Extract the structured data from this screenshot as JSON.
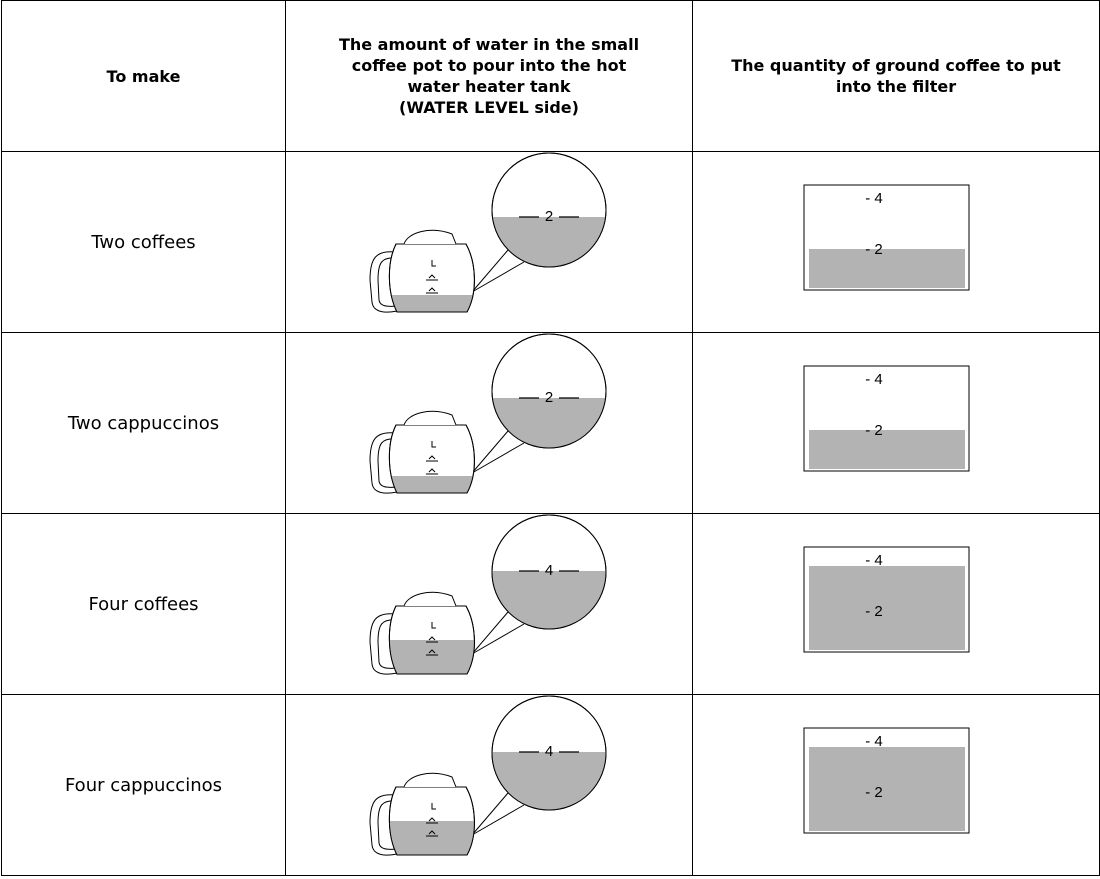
{
  "header": {
    "to_make": "To make",
    "water": [
      "The amount of water in the small",
      "coffee pot to pour into the hot",
      "water heater tank",
      "(WATER LEVEL side)"
    ],
    "coffee": [
      "The quantity of ground coffee to put",
      "into the filter"
    ]
  },
  "rows": [
    {
      "label": "Two coffees",
      "pot_level": "2",
      "filter_marks": [
        "- 4",
        "- 2"
      ]
    },
    {
      "label": "Two cappuccinos",
      "pot_level": "2",
      "filter_marks": [
        "- 4",
        "- 2"
      ]
    },
    {
      "label": "Four coffees",
      "pot_level": "4",
      "filter_marks": [
        "- 4",
        "- 2"
      ]
    },
    {
      "label": "Four cappuccinos",
      "pot_level": "4",
      "filter_marks": [
        "- 4",
        "- 2"
      ]
    }
  ]
}
